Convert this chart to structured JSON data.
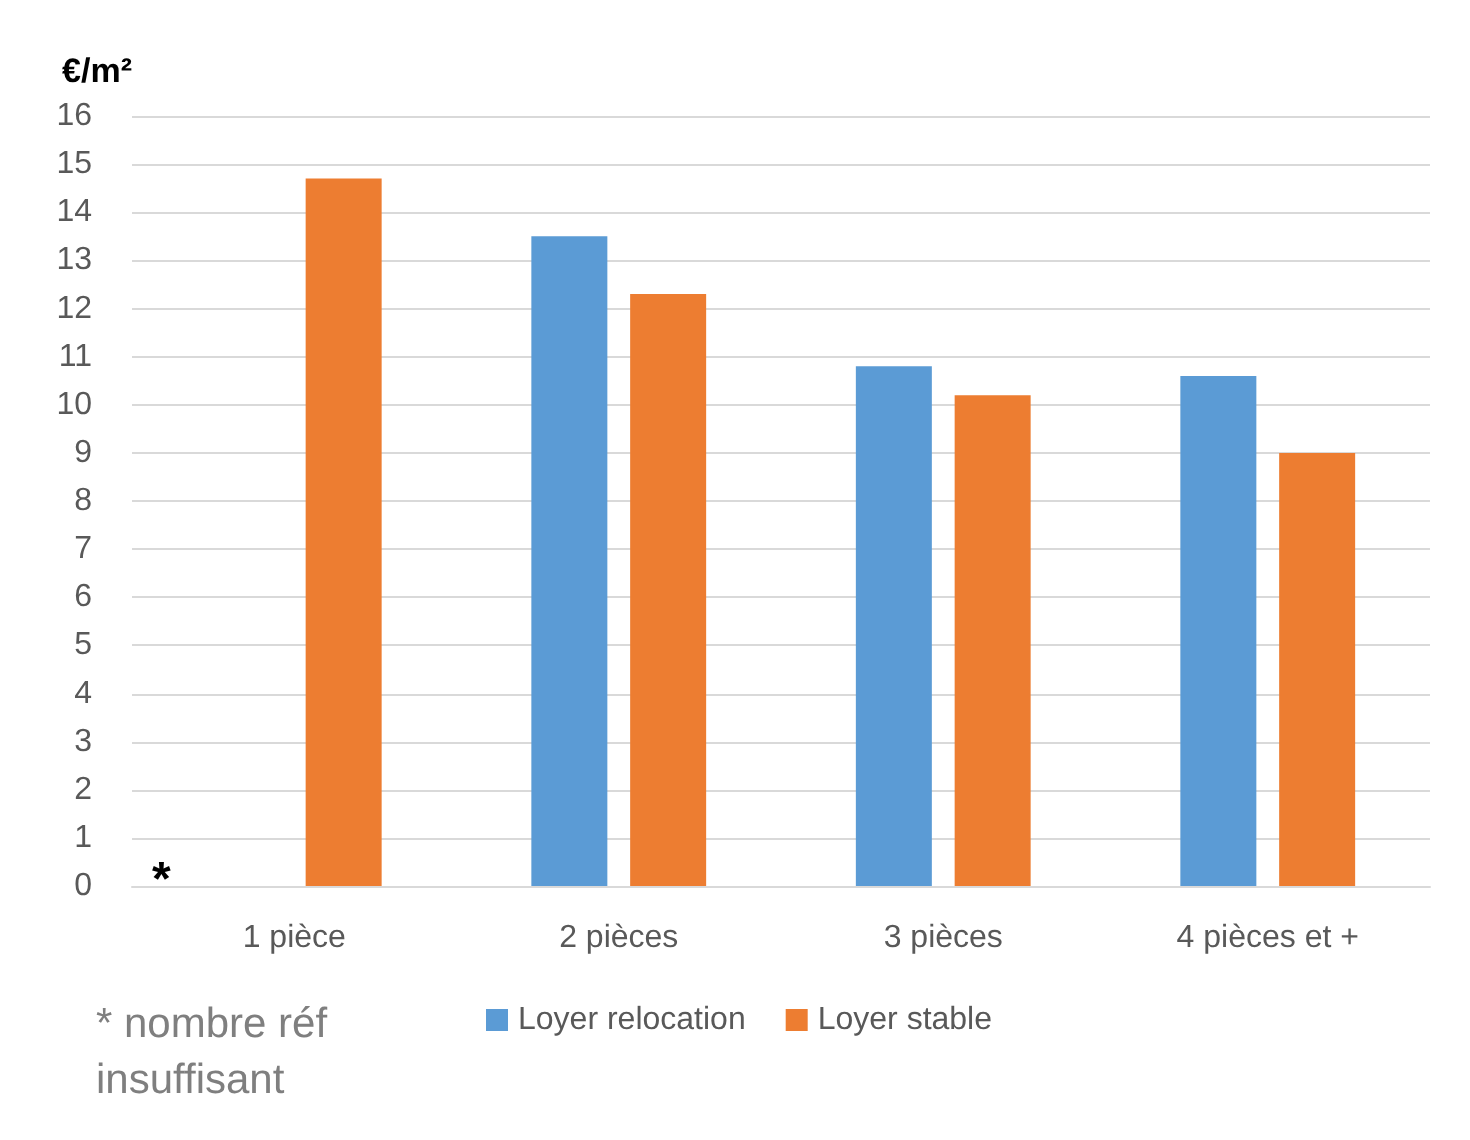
{
  "chart_data": {
    "type": "bar",
    "ylabel": "€/m²",
    "categories": [
      "1 pièce",
      "2 pièces",
      "3 pièces",
      "4 pièces et +"
    ],
    "series": [
      {
        "name": "Loyer relocation",
        "color": "#5b9bd5",
        "values": [
          null,
          13.5,
          10.8,
          10.6
        ]
      },
      {
        "name": "Loyer stable",
        "color": "#ed7d31",
        "values": [
          14.7,
          12.3,
          10.2,
          9.0
        ]
      }
    ],
    "ylim": [
      0,
      16
    ],
    "yticks": [
      0,
      1,
      2,
      3,
      4,
      5,
      6,
      7,
      8,
      9,
      10,
      11,
      12,
      13,
      14,
      15,
      16
    ],
    "grid": "y",
    "legend": "bottom",
    "annotations": [
      "*",
      "* nombre réf insuffisant"
    ]
  }
}
